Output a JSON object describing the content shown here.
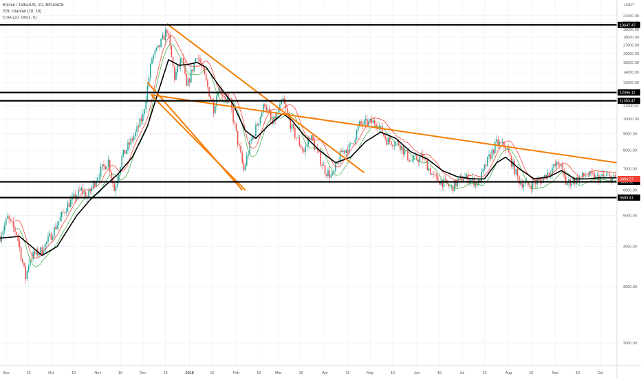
{
  "legend": {
    "symbol": "Bitcoin / TetherUS, 1D, BINANCE",
    "ssl": "SSL channel (10, 10)",
    "ema": "EMA (20, close, 0)"
  },
  "currency": "USDT",
  "colors": {
    "up": "#26a69a",
    "down": "#ef5350",
    "ema": "#000000",
    "ssl_green": "#4caf50",
    "ssl_red": "#f44336",
    "trendline": "#f57c00",
    "level": "#000000",
    "price_tag": "#f44336"
  },
  "chart_data": {
    "type": "candlestick",
    "y_scale": "log",
    "ylim": [
      1700,
      23500
    ],
    "y_ticks": [
      "2000.00",
      "3000.00",
      "4000.00",
      "5000.00",
      "6000.00",
      "7000.00",
      "8000.00",
      "9000.00",
      "10000.00",
      "11000.00",
      "12000.00",
      "13000.00",
      "14000.00",
      "15000.00",
      "16000.00",
      "17000.00",
      "18000.00",
      "19000.00",
      "20000.00",
      "21000.00"
    ],
    "x_start": "2017-08-28",
    "x_end": "2018-10-12",
    "x_labels": [
      {
        "date": "2017-09-01",
        "label": "Sep"
      },
      {
        "date": "2017-09-16",
        "label": "16"
      },
      {
        "date": "2017-10-01",
        "label": "Oct"
      },
      {
        "date": "2017-10-16",
        "label": "16"
      },
      {
        "date": "2017-11-01",
        "label": "Nov"
      },
      {
        "date": "2017-11-16",
        "label": "16"
      },
      {
        "date": "2017-12-01",
        "label": "Dec"
      },
      {
        "date": "2017-12-16",
        "label": "16"
      },
      {
        "date": "2018-01-01",
        "label": "2018"
      },
      {
        "date": "2018-01-16",
        "label": "16"
      },
      {
        "date": "2018-02-01",
        "label": "Feb"
      },
      {
        "date": "2018-02-16",
        "label": "16"
      },
      {
        "date": "2018-03-01",
        "label": "Mar"
      },
      {
        "date": "2018-03-16",
        "label": "16"
      },
      {
        "date": "2018-04-01",
        "label": "Apr"
      },
      {
        "date": "2018-04-16",
        "label": "16"
      },
      {
        "date": "2018-05-01",
        "label": "May"
      },
      {
        "date": "2018-05-16",
        "label": "16"
      },
      {
        "date": "2018-06-01",
        "label": "Jun"
      },
      {
        "date": "2018-06-16",
        "label": "16"
      },
      {
        "date": "2018-07-01",
        "label": "Jul"
      },
      {
        "date": "2018-07-16",
        "label": "16"
      },
      {
        "date": "2018-08-01",
        "label": "Aug"
      },
      {
        "date": "2018-08-16",
        "label": "16"
      },
      {
        "date": "2018-09-01",
        "label": "Sep"
      },
      {
        "date": "2018-09-16",
        "label": "16"
      },
      {
        "date": "2018-10-01",
        "label": "Oct"
      }
    ],
    "price_path": [
      [
        "2017-08-28",
        4300
      ],
      [
        "2017-09-02",
        4900
      ],
      [
        "2017-09-08",
        4400
      ],
      [
        "2017-09-14",
        3200
      ],
      [
        "2017-09-17",
        3700
      ],
      [
        "2017-09-25",
        3900
      ],
      [
        "2017-10-01",
        4350
      ],
      [
        "2017-10-12",
        5400
      ],
      [
        "2017-10-21",
        6000
      ],
      [
        "2017-10-25",
        5700
      ],
      [
        "2017-11-01",
        6700
      ],
      [
        "2017-11-08",
        7400
      ],
      [
        "2017-11-12",
        6000
      ],
      [
        "2017-11-17",
        7600
      ],
      [
        "2017-11-26",
        9000
      ],
      [
        "2017-12-01",
        10200
      ],
      [
        "2017-12-07",
        15500
      ],
      [
        "2017-12-11",
        16500
      ],
      [
        "2017-12-17",
        19000
      ],
      [
        "2017-12-22",
        13500
      ],
      [
        "2017-12-27",
        15500
      ],
      [
        "2017-12-30",
        12500
      ],
      [
        "2018-01-06",
        16000
      ],
      [
        "2018-01-10",
        14000
      ],
      [
        "2018-01-17",
        10800
      ],
      [
        "2018-01-20",
        12500
      ],
      [
        "2018-01-28",
        11200
      ],
      [
        "2018-02-02",
        8500
      ],
      [
        "2018-02-06",
        6900
      ],
      [
        "2018-02-10",
        8300
      ],
      [
        "2018-02-20",
        11200
      ],
      [
        "2018-02-25",
        9600
      ],
      [
        "2018-03-04",
        11400
      ],
      [
        "2018-03-10",
        9300
      ],
      [
        "2018-03-18",
        7900
      ],
      [
        "2018-03-22",
        8900
      ],
      [
        "2018-04-01",
        6900
      ],
      [
        "2018-04-06",
        6600
      ],
      [
        "2018-04-12",
        7900
      ],
      [
        "2018-04-18",
        8200
      ],
      [
        "2018-04-24",
        9600
      ],
      [
        "2018-05-05",
        9800
      ],
      [
        "2018-05-12",
        8600
      ],
      [
        "2018-05-20",
        8400
      ],
      [
        "2018-05-28",
        7400
      ],
      [
        "2018-06-05",
        7600
      ],
      [
        "2018-06-12",
        6600
      ],
      [
        "2018-06-24",
        6100
      ],
      [
        "2018-07-02",
        6600
      ],
      [
        "2018-07-12",
        6300
      ],
      [
        "2018-07-18",
        7400
      ],
      [
        "2018-07-24",
        8400
      ],
      [
        "2018-07-30",
        8200
      ],
      [
        "2018-08-08",
        6400
      ],
      [
        "2018-08-14",
        6200
      ],
      [
        "2018-08-22",
        6400
      ],
      [
        "2018-08-30",
        7000
      ],
      [
        "2018-09-04",
        7300
      ],
      [
        "2018-09-08",
        6300
      ],
      [
        "2018-09-16",
        6500
      ],
      [
        "2018-09-22",
        6700
      ],
      [
        "2018-09-28",
        6550
      ],
      [
        "2018-10-05",
        6600
      ],
      [
        "2018-10-12",
        6500
      ]
    ],
    "ema_path": [
      [
        "2017-08-28",
        4250
      ],
      [
        "2017-09-10",
        4300
      ],
      [
        "2017-09-25",
        3750
      ],
      [
        "2017-10-05",
        4000
      ],
      [
        "2017-10-18",
        5000
      ],
      [
        "2017-10-27",
        5600
      ],
      [
        "2017-11-06",
        6200
      ],
      [
        "2017-11-14",
        6700
      ],
      [
        "2017-11-24",
        7600
      ],
      [
        "2017-12-04",
        9500
      ],
      [
        "2017-12-12",
        12500
      ],
      [
        "2017-12-18",
        15300
      ],
      [
        "2017-12-25",
        14700
      ],
      [
        "2017-12-31",
        14800
      ],
      [
        "2018-01-06",
        15000
      ],
      [
        "2018-01-12",
        14500
      ],
      [
        "2018-01-20",
        12800
      ],
      [
        "2018-01-30",
        11100
      ],
      [
        "2018-02-07",
        9200
      ],
      [
        "2018-02-14",
        8700
      ],
      [
        "2018-02-22",
        9500
      ],
      [
        "2018-03-04",
        10400
      ],
      [
        "2018-03-10",
        9900
      ],
      [
        "2018-03-18",
        8900
      ],
      [
        "2018-03-28",
        8000
      ],
      [
        "2018-04-08",
        7300
      ],
      [
        "2018-04-18",
        7600
      ],
      [
        "2018-04-28",
        8500
      ],
      [
        "2018-05-08",
        9100
      ],
      [
        "2018-05-18",
        8700
      ],
      [
        "2018-05-28",
        7900
      ],
      [
        "2018-06-08",
        7500
      ],
      [
        "2018-06-18",
        6900
      ],
      [
        "2018-06-28",
        6600
      ],
      [
        "2018-07-08",
        6500
      ],
      [
        "2018-07-16",
        6500
      ],
      [
        "2018-07-24",
        7300
      ],
      [
        "2018-07-30",
        7600
      ],
      [
        "2018-08-08",
        7000
      ],
      [
        "2018-08-18",
        6500
      ],
      [
        "2018-08-28",
        6600
      ],
      [
        "2018-09-05",
        6900
      ],
      [
        "2018-09-14",
        6500
      ],
      [
        "2018-09-22",
        6500
      ],
      [
        "2018-09-30",
        6550
      ],
      [
        "2018-10-12",
        6550
      ]
    ],
    "horizontal_levels": [
      {
        "price": 19647.47,
        "label": "19647.47"
      },
      {
        "price": 12095.11,
        "label": "12095.11"
      },
      {
        "price": 11393.47,
        "label": "11393.47"
      },
      {
        "price": 6365.58,
        "label": "6365.58"
      },
      {
        "price": 5683.41,
        "label": "5683.41"
      }
    ],
    "current_price": {
      "price": 6494.27,
      "label": "6494.27"
    },
    "trendlines": [
      {
        "from": [
          "2017-12-17",
          19800
        ],
        "to": [
          "2018-04-27",
          6800
        ]
      },
      {
        "from": [
          "2017-12-07",
          11800
        ],
        "to": [
          "2018-02-07",
          6000
        ]
      },
      {
        "from": [
          "2017-12-04",
          13000
        ],
        "to": [
          "2018-02-05",
          6000
        ]
      },
      {
        "from": [
          "2017-12-06",
          11900
        ],
        "to": [
          "2018-10-12",
          7300
        ]
      }
    ]
  }
}
